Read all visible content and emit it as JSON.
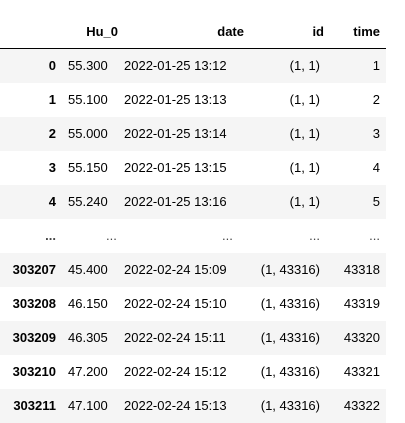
{
  "table": {
    "columns": {
      "hu": "Hu_0",
      "date": "date",
      "id": "id",
      "time": "time"
    },
    "rows": [
      {
        "index": "0",
        "hu": "55.300",
        "date": "2022-01-25 13:12",
        "id": "(1, 1)",
        "time": "1"
      },
      {
        "index": "1",
        "hu": "55.100",
        "date": "2022-01-25 13:13",
        "id": "(1, 1)",
        "time": "2"
      },
      {
        "index": "2",
        "hu": "55.000",
        "date": "2022-01-25 13:14",
        "id": "(1, 1)",
        "time": "3"
      },
      {
        "index": "3",
        "hu": "55.150",
        "date": "2022-01-25 13:15",
        "id": "(1, 1)",
        "time": "4"
      },
      {
        "index": "4",
        "hu": "55.240",
        "date": "2022-01-25 13:16",
        "id": "(1, 1)",
        "time": "5"
      },
      {
        "index": "...",
        "hu": "...",
        "date": "...",
        "id": "...",
        "time": "..."
      },
      {
        "index": "303207",
        "hu": "45.400",
        "date": "2022-02-24 15:09",
        "id": "(1, 43316)",
        "time": "43318"
      },
      {
        "index": "303208",
        "hu": "46.150",
        "date": "2022-02-24 15:10",
        "id": "(1, 43316)",
        "time": "43319"
      },
      {
        "index": "303209",
        "hu": "46.305",
        "date": "2022-02-24 15:11",
        "id": "(1, 43316)",
        "time": "43320"
      },
      {
        "index": "303210",
        "hu": "47.200",
        "date": "2022-02-24 15:12",
        "id": "(1, 43316)",
        "time": "43321"
      },
      {
        "index": "303211",
        "hu": "47.100",
        "date": "2022-02-24 15:13",
        "id": "(1, 43316)",
        "time": "43322"
      }
    ]
  }
}
